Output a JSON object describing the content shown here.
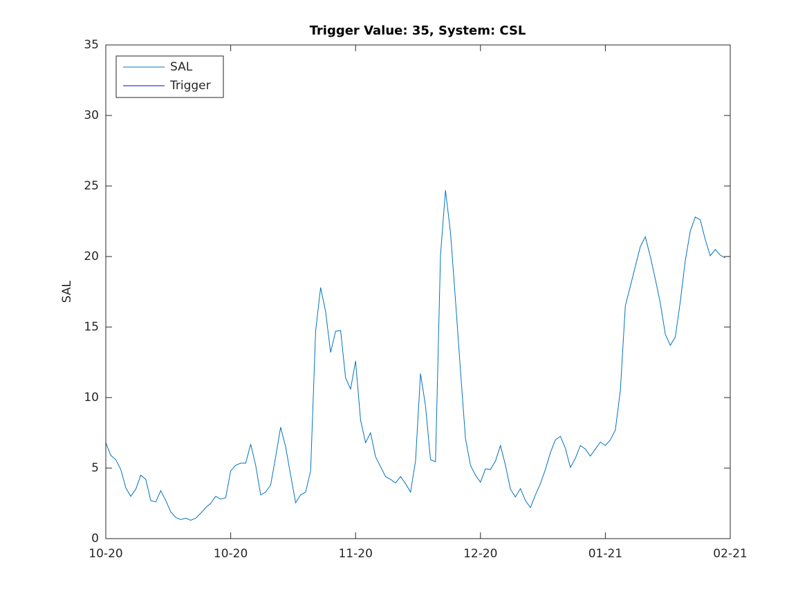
{
  "chart_data": {
    "type": "line",
    "title": "Trigger Value: 35, System: CSL",
    "y_label": "SAL",
    "series": [
      {
        "name": "SAL",
        "color": "#0072bd",
        "x": [
          0,
          1,
          2,
          3,
          4,
          5,
          6,
          7,
          8,
          9,
          10,
          11,
          12,
          13,
          14,
          15,
          16,
          17,
          18,
          19,
          20,
          21,
          22,
          23,
          24,
          25,
          26,
          27,
          28,
          29,
          30,
          31,
          32,
          33,
          34,
          35,
          36,
          37,
          38,
          39,
          40,
          41,
          42,
          43,
          44,
          45,
          46,
          47,
          48,
          49,
          50,
          51,
          52,
          53,
          54,
          55,
          56,
          57,
          58,
          59,
          60,
          61,
          62,
          63,
          64,
          65,
          66,
          67,
          68,
          69,
          70,
          71,
          72,
          73,
          74,
          75,
          76,
          77,
          78,
          79,
          80,
          81,
          82,
          83,
          84,
          85,
          86,
          87,
          88,
          89,
          90,
          91,
          92,
          93,
          94,
          95,
          96,
          97,
          98,
          99,
          100,
          101,
          102,
          103,
          104,
          105,
          106,
          107,
          108,
          109,
          110,
          111,
          112,
          113,
          114,
          115,
          116,
          117,
          118,
          119,
          120,
          121,
          122,
          123,
          124
        ],
        "values": [
          6.8,
          5.9,
          5.6,
          4.9,
          3.6,
          3.0,
          3.5,
          4.5,
          4.2,
          2.7,
          2.6,
          3.4,
          2.7,
          1.9,
          1.5,
          1.35,
          1.45,
          1.3,
          1.45,
          1.8,
          2.2,
          2.5,
          3.0,
          2.8,
          2.9,
          4.8,
          5.2,
          5.35,
          5.35,
          6.7,
          5.2,
          3.1,
          3.3,
          3.8,
          5.8,
          7.9,
          6.5,
          4.5,
          2.55,
          3.1,
          3.3,
          4.8,
          14.7,
          17.8,
          16.1,
          13.2,
          14.7,
          14.75,
          11.4,
          10.6,
          12.6,
          8.4,
          6.8,
          7.5,
          5.8,
          5.1,
          4.4,
          4.2,
          3.95,
          4.4,
          3.9,
          3.3,
          5.5,
          11.7,
          9.4,
          5.6,
          5.45,
          20.1,
          24.7,
          21.7,
          16.9,
          11.9,
          7.1,
          5.2,
          4.5,
          4.0,
          4.95,
          4.9,
          5.5,
          6.6,
          5.2,
          3.5,
          2.95,
          3.55,
          2.7,
          2.2,
          3.1,
          3.9,
          4.9,
          6.1,
          7.0,
          7.25,
          6.4,
          5.05,
          5.7,
          6.6,
          6.35,
          5.85,
          6.35,
          6.85,
          6.6,
          7.0,
          7.7,
          10.5,
          16.5,
          17.9,
          19.3,
          20.7,
          21.4,
          20.0,
          18.4,
          16.7,
          14.5,
          13.7,
          14.3,
          16.8,
          19.7,
          21.8,
          22.8,
          22.6,
          21.2,
          20.05,
          20.5,
          20.1,
          19.9
        ]
      },
      {
        "name": "Trigger",
        "color": "#0000ff",
        "x": [
          0,
          125
        ],
        "values": [
          35,
          35
        ]
      }
    ],
    "xlim": [
      0,
      125
    ],
    "xticks": [
      {
        "value": 0,
        "label": "10-20"
      },
      {
        "value": 25,
        "label": "10-20"
      },
      {
        "value": 50,
        "label": "11-20"
      },
      {
        "value": 75,
        "label": "12-20"
      },
      {
        "value": 100,
        "label": "01-21"
      },
      {
        "value": 125,
        "label": "02-21"
      }
    ],
    "ylim": [
      0,
      35
    ],
    "yticks": [
      0,
      5,
      10,
      15,
      20,
      25,
      30,
      35
    ],
    "legend": "upper-left"
  }
}
